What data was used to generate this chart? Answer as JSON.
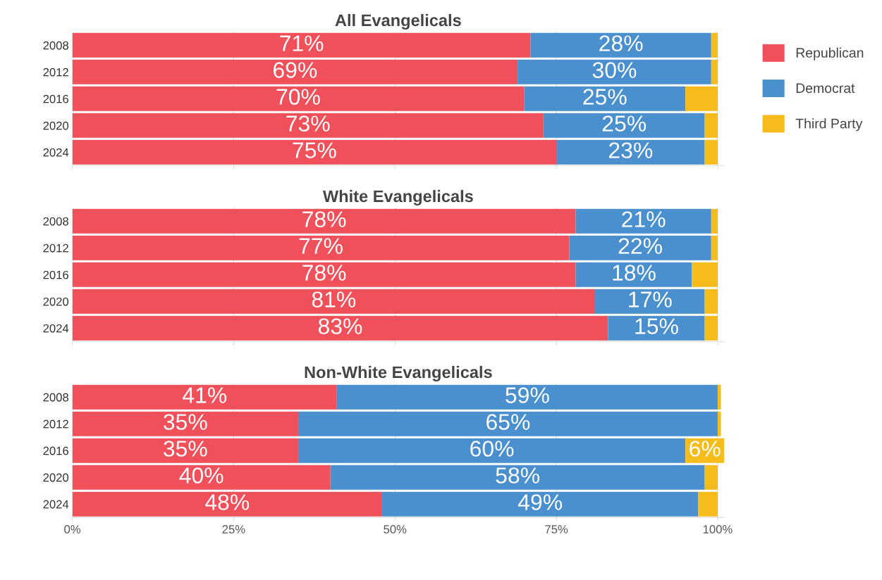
{
  "chart_data": [
    {
      "type": "bar",
      "orientation": "horizontal",
      "stacked": true,
      "title": "All Evangelicals",
      "categories": [
        "2008",
        "2012",
        "2016",
        "2020",
        "2024"
      ],
      "xlim": [
        0,
        101
      ],
      "xticks": [
        {
          "value": 0,
          "label": null
        },
        {
          "value": 25,
          "label": null
        },
        {
          "value": 50,
          "label": null
        },
        {
          "value": 75,
          "label": null
        },
        {
          "value": 100,
          "label": null
        }
      ],
      "grid": "x",
      "tick_labels": "y",
      "legend": "top right",
      "series": [
        {
          "name": "Republican",
          "color": "#f0505a",
          "values": [
            71,
            69,
            70,
            73,
            75
          ],
          "value_labels": [
            "71%",
            "69%",
            "70%",
            "73%",
            "75%"
          ]
        },
        {
          "name": "Democrat",
          "color": "#4a8fce",
          "values": [
            28,
            30,
            25,
            25,
            23
          ],
          "value_labels": [
            "28%",
            "30%",
            "25%",
            "25%",
            "23%"
          ]
        },
        {
          "name": "Third Party",
          "color": "#f5bc1c",
          "values": [
            1,
            1,
            5,
            2,
            2
          ],
          "value_labels": [
            null,
            null,
            null,
            null,
            null
          ]
        }
      ]
    },
    {
      "type": "bar",
      "orientation": "horizontal",
      "stacked": true,
      "title": "White Evangelicals",
      "categories": [
        "2008",
        "2012",
        "2016",
        "2020",
        "2024"
      ],
      "xlim": [
        0,
        101
      ],
      "xticks": [
        {
          "value": 0,
          "label": null
        },
        {
          "value": 25,
          "label": null
        },
        {
          "value": 50,
          "label": null
        },
        {
          "value": 75,
          "label": null
        },
        {
          "value": 100,
          "label": null
        }
      ],
      "grid": "x",
      "tick_labels": "y",
      "series": [
        {
          "color": "#f0505a",
          "values": [
            78,
            77,
            78,
            81,
            83
          ],
          "value_labels": [
            "78%",
            "77%",
            "78%",
            "81%",
            "83%"
          ]
        },
        {
          "color": "#4a8fce",
          "values": [
            21,
            22,
            18,
            17,
            15
          ],
          "value_labels": [
            "21%",
            "22%",
            "18%",
            "17%",
            "15%"
          ]
        },
        {
          "color": "#f5bc1c",
          "values": [
            1,
            1,
            4,
            2,
            2
          ],
          "value_labels": [
            null,
            null,
            null,
            null,
            null
          ]
        }
      ]
    },
    {
      "type": "bar",
      "orientation": "horizontal",
      "stacked": true,
      "title": "Non-White Evangelicals",
      "categories": [
        "2008",
        "2012",
        "2016",
        "2020",
        "2024"
      ],
      "xlim": [
        0,
        101
      ],
      "xticks": [
        {
          "value": 0,
          "label": "0%"
        },
        {
          "value": 25,
          "label": "25%"
        },
        {
          "value": 50,
          "label": "50%"
        },
        {
          "value": 75,
          "label": "75%"
        },
        {
          "value": 100,
          "label": "100%"
        }
      ],
      "grid": "x",
      "series": [
        {
          "color": "#f0505a",
          "values": [
            41,
            35,
            35,
            40,
            48
          ],
          "value_labels": [
            "41%",
            "35%",
            "35%",
            "40%",
            "48%"
          ]
        },
        {
          "color": "#4a8fce",
          "values": [
            59,
            65,
            60,
            58,
            49
          ],
          "value_labels": [
            "59%",
            "65%",
            "60%",
            "58%",
            "49%"
          ]
        },
        {
          "color": "#f5bc1c",
          "values": [
            0.5,
            0.5,
            6,
            2,
            3
          ],
          "value_labels": [
            null,
            null,
            "6%",
            null,
            null
          ]
        }
      ]
    }
  ]
}
